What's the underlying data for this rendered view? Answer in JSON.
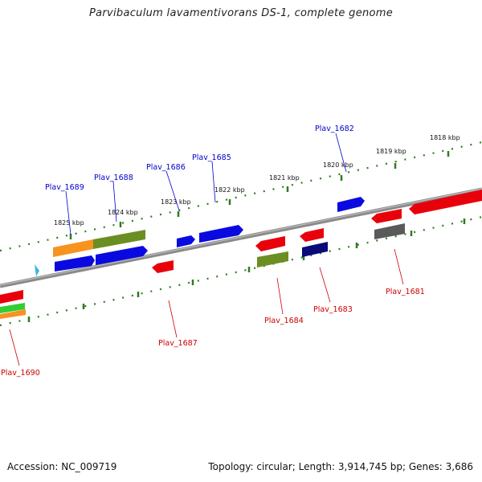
{
  "title": "Parvibaculum lavamentivorans DS-1, complete genome",
  "footer": {
    "accession": "Accession: NC_009719",
    "summary": "Topology: circular; Length: 3,914,745 bp; Genes: 3,686"
  },
  "colors": {
    "backbone": "#8a8a8a",
    "tick": "#2e7d1e",
    "label_forward": "#0000cc",
    "label_reverse": "#cc0000",
    "red": "#e8000b",
    "blue": "#0a0ae0",
    "olive": "#6b8e23",
    "orange": "#f7931e",
    "navy": "#0a0a7a",
    "gray": "#5a5a5a",
    "green": "#33cc33",
    "cyan": "#39b3e6"
  },
  "scale_labels": [
    "1825 kbp",
    "1824 kbp",
    "1823 kbp",
    "1822 kbp",
    "1821 kbp",
    "1820 kbp",
    "1819 kbp",
    "1818 kbp"
  ],
  "gene_labels": {
    "forward": [
      "Plav_1689",
      "Plav_1688",
      "Plav_1686",
      "Plav_1685",
      "Plav_1682"
    ],
    "reverse": [
      "Plav_1690",
      "Plav_1687",
      "Plav_1684",
      "Plav_1683",
      "Plav_1681"
    ]
  }
}
